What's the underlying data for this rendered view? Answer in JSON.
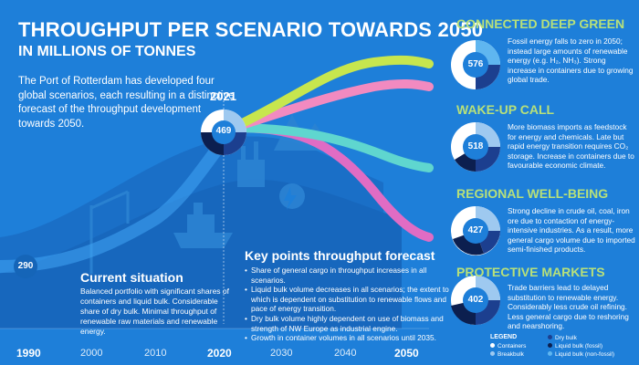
{
  "header": {
    "title": "THROUGHPUT PER SCENARIO TOWARDS 2050",
    "subtitle": "IN MILLIONS OF TONNES"
  },
  "intro": "The Port of Rotterdam has developed four global scenarios, each resulting in a distinctive forecast of the throughput development towards 2050.",
  "timeline": {
    "years": [
      "1990",
      "2000",
      "2010",
      "2020",
      "2030",
      "2040",
      "2050"
    ],
    "start_value": "290",
    "year_2021": "2021",
    "value_2021": "469"
  },
  "current_situation": {
    "title": "Current situation",
    "body": "Balanced portfolio with significant shares of containers and liquid bulk. Considerable share of dry bulk. Minimal throughput of renewable raw materials and renewable energy."
  },
  "key_points": {
    "title": "Key points throughput forecast",
    "items": [
      "Share of general cargo in throughput increases in all scenarios.",
      "Liquid bulk volume decreases in all scenarios; the extent to which is dependent on substitution to renewable flows and pace of energy transition.",
      "Dry bulk volume highly dependent on use of biomass and strength of NW Europe as industrial engine.",
      "Growth in container volumes in all scenarios until 2035."
    ]
  },
  "scenarios": [
    {
      "title": "CONNECTED DEEP GREEN",
      "value": "576",
      "description": "Fossil energy falls to zero in 2050; instead large amounts of renewable energy (e.g. H₂, NH₃). Strong increase in containers due to growing global trade.",
      "line_color": "#c7e64e"
    },
    {
      "title": "WAKE-UP CALL",
      "value": "518",
      "description": "More biomass imports as feedstock for energy and chemicals. Late but rapid energy transition requires CO₂ storage. Increase in containers due to favourable economic climate.",
      "line_color": "#f28ac0"
    },
    {
      "title": "REGIONAL WELL-BEING",
      "value": "427",
      "description": "Strong decline in crude oil, coal, iron ore due to contaction of energy-intensive industries. As a result, more general cargo volume due to imported semi-finished products.",
      "line_color": "#5fd6cf"
    },
    {
      "title": "PROTECTIVE MARKETS",
      "value": "402",
      "description": "Trade barriers lead to delayed substitution to renewable energy. Considerably less crude oil refining. Less general cargo due to reshoring and nearshoring.",
      "line_color": "#e06cc4"
    }
  ],
  "legend": {
    "title": "LEGEND",
    "items": [
      {
        "label": "Containers",
        "color": "#ffffff"
      },
      {
        "label": "Breakbulk",
        "color": "#9ec9f0"
      },
      {
        "label": "Dry bulk",
        "color": "#1c3f8f"
      },
      {
        "label": "Liquid bulk (fossil)",
        "color": "#0c1f4f"
      },
      {
        "label": "Liquid bulk (non-fossil)",
        "color": "#5fb6f0"
      }
    ]
  },
  "colors": {
    "background": "#1e7fd9",
    "accent_green": "#b7e07a",
    "hill": "#1565b8"
  }
}
